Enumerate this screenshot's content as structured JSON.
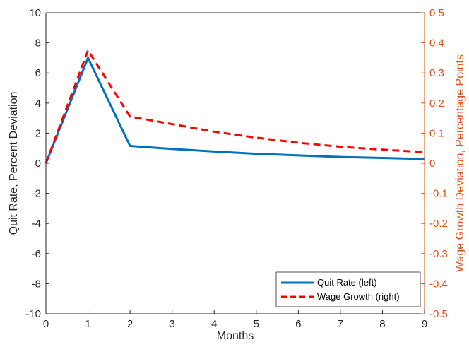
{
  "chart_data": {
    "type": "line",
    "x": [
      0,
      1,
      2,
      3,
      4,
      5,
      6,
      7,
      8,
      9
    ],
    "xlabel": "Months",
    "xlim": [
      0,
      9
    ],
    "xticks": [
      "0",
      "1",
      "2",
      "3",
      "4",
      "5",
      "6",
      "7",
      "8",
      "9"
    ],
    "left_axis": {
      "label": "Quit Rate, Percent Deviation",
      "ylim": [
        -10,
        10
      ],
      "ticks": [
        "-10",
        "-8",
        "-6",
        "-4",
        "-2",
        "0",
        "2",
        "4",
        "6",
        "8",
        "10"
      ],
      "color": "#000000"
    },
    "right_axis": {
      "label": "Wage Growth Deviation, Percentage Points",
      "ylim": [
        -0.5,
        0.5
      ],
      "ticks": [
        "-0.5",
        "-0.4",
        "-0.3",
        "-0.2",
        "-0.1",
        "0",
        "0.1",
        "0.2",
        "0.3",
        "0.4",
        "0.5"
      ],
      "color": "#D95319"
    },
    "series": [
      {
        "name": "Quit Rate (left)",
        "axis": "left",
        "color": "#0072BD",
        "style": "solid",
        "values": [
          0,
          7.0,
          1.15,
          0.95,
          0.78,
          0.63,
          0.52,
          0.42,
          0.35,
          0.28
        ]
      },
      {
        "name": "Wage Growth (right)",
        "axis": "right",
        "color": "#FF0000",
        "style": "dashed",
        "values": [
          0,
          0.375,
          0.155,
          0.13,
          0.105,
          0.085,
          0.068,
          0.055,
          0.045,
          0.037
        ]
      }
    ],
    "legend_position": "bottom-right",
    "grid": false
  }
}
